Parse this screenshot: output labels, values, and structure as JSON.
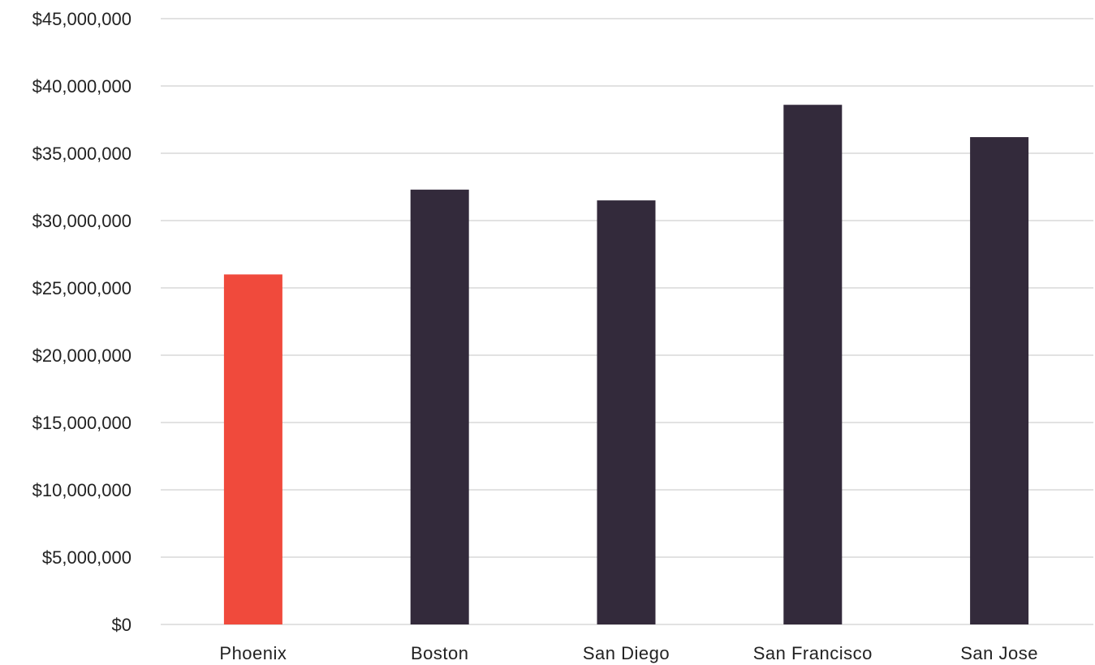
{
  "chart_data": {
    "type": "bar",
    "title": "",
    "xlabel": "",
    "ylabel": "",
    "categories": [
      "Phoenix",
      "Boston",
      "San Diego",
      "San Francisco",
      "San Jose"
    ],
    "values": [
      26000000,
      32300000,
      31500000,
      38600000,
      36200000
    ],
    "ylim": [
      0,
      45000000
    ],
    "y_ticks": [
      0,
      5000000,
      10000000,
      15000000,
      20000000,
      25000000,
      30000000,
      35000000,
      40000000,
      45000000
    ],
    "y_tick_labels": [
      "$0",
      "$5,000,000",
      "$10,000,000",
      "$15,000,000",
      "$20,000,000",
      "$25,000,000",
      "$30,000,000",
      "$35,000,000",
      "$40,000,000",
      "$45,000,000"
    ],
    "grid": true,
    "legend": "none",
    "colors": {
      "highlight": "#f04a3c",
      "default": "#332a3b",
      "grid": "#d9d9d9",
      "text": "#222222"
    },
    "highlight_category": "Phoenix"
  }
}
